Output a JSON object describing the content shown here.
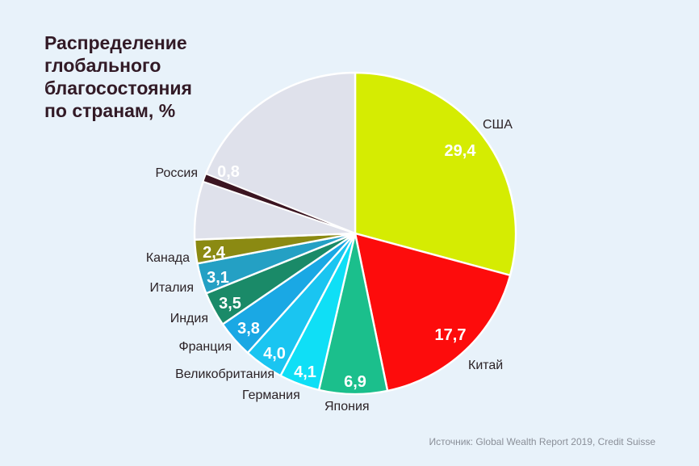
{
  "colors": {
    "background": "#e8f2fa",
    "title": "#321a26",
    "text": "#2b2226",
    "source": "#8a8f98"
  },
  "source": "Источник: Global Wealth Report 2019, Credit Suisse",
  "chart_data": {
    "type": "pie",
    "title": [
      "Распределение",
      "глобального",
      "благосостояния",
      "по странам, %"
    ],
    "slices": [
      {
        "name": "США",
        "value": 29.4,
        "label": "29,4",
        "color": "#d5ec02",
        "label_color": "#2b1a20"
      },
      {
        "name": "Китай",
        "value": 17.7,
        "label": "17,7",
        "color": "#fd0c0c",
        "label_color": "#ffffff"
      },
      {
        "name": "Япония",
        "value": 6.9,
        "label": "6,9",
        "color": "#1bbf8c",
        "label_color": "#ffffff"
      },
      {
        "name": "Германия",
        "value": 4.1,
        "label": "4,1",
        "color": "#0fdff6",
        "label_color": "#ffffff"
      },
      {
        "name": "Великобритания",
        "value": 4.0,
        "label": "4,0",
        "color": "#1ac5f1",
        "label_color": "#ffffff"
      },
      {
        "name": "Франция",
        "value": 3.8,
        "label": "3,8",
        "color": "#1aa8e4",
        "label_color": "#ffffff"
      },
      {
        "name": "Индия",
        "value": 3.5,
        "label": "3,5",
        "color": "#1a8a68",
        "label_color": "#ffffff"
      },
      {
        "name": "Италия",
        "value": 3.1,
        "label": "3,1",
        "color": "#24a0c4",
        "label_color": "#ffffff"
      },
      {
        "name": "Канада",
        "value": 2.4,
        "label": "2,4",
        "color": "#8b8a12",
        "label_color": "#ffffff"
      },
      {
        "value": 5.9,
        "color": "#dfe1eb"
      },
      {
        "name": "Россия",
        "value": 0.8,
        "label": "0,8",
        "color": "#3c1521",
        "label_color": "#2b1a20"
      },
      {
        "value": 19.1,
        "color": "#dfe1eb"
      }
    ]
  }
}
